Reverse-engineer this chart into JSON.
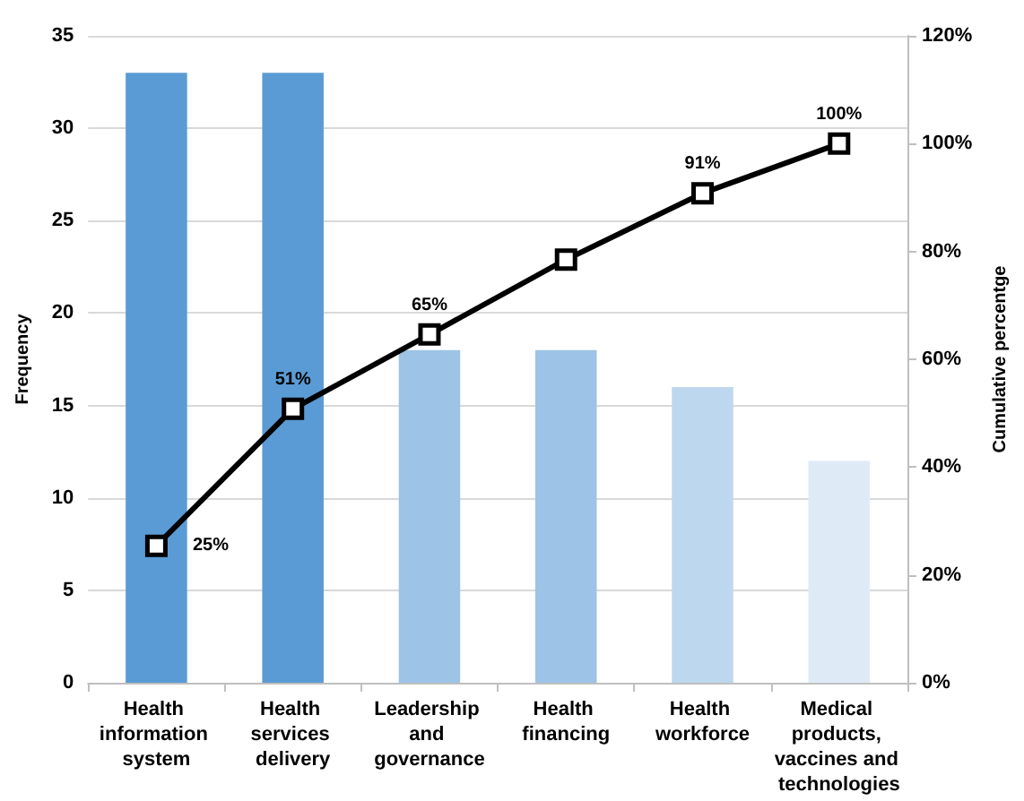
{
  "chart_data": {
    "type": "bar",
    "ylabel": "Frequency",
    "y2label": "Cumulative percentge",
    "categories": [
      "Health information system",
      "Health services delivery",
      "Leadership and governance",
      "Health financing",
      "Health workforce",
      "Medical products, vaccines and technologies"
    ],
    "series": [
      {
        "values": [
          33,
          33,
          18,
          18,
          16,
          12
        ],
        "colors": [
          "#5b9bd5",
          "#5b9bd5",
          "#9dc3e6",
          "#9dc3e6",
          "#bdd7ee",
          "#deebf7"
        ]
      },
      {
        "type": "line",
        "axis": "y2",
        "color": "#000000",
        "values": [
          25.4,
          50.8,
          64.6,
          78.5,
          90.8,
          100
        ],
        "value_labels": [
          "25%",
          "51%",
          "65%",
          null,
          "91%",
          "100%"
        ],
        "marker": "square",
        "line_style": "solid"
      }
    ],
    "ylim": [
      0,
      35
    ],
    "yticks": [
      0,
      5,
      10,
      15,
      20,
      25,
      30,
      35
    ],
    "y2lim": [
      0,
      120
    ],
    "y2ticks": [
      {
        "value": 0,
        "label": "0%"
      },
      {
        "value": 20,
        "label": "20%"
      },
      {
        "value": 40,
        "label": "40%"
      },
      {
        "value": 60,
        "label": "60%"
      },
      {
        "value": 80,
        "label": "80%"
      },
      {
        "value": 100,
        "label": "100%"
      },
      {
        "value": 120,
        "label": "120%"
      }
    ],
    "grid": "y"
  }
}
